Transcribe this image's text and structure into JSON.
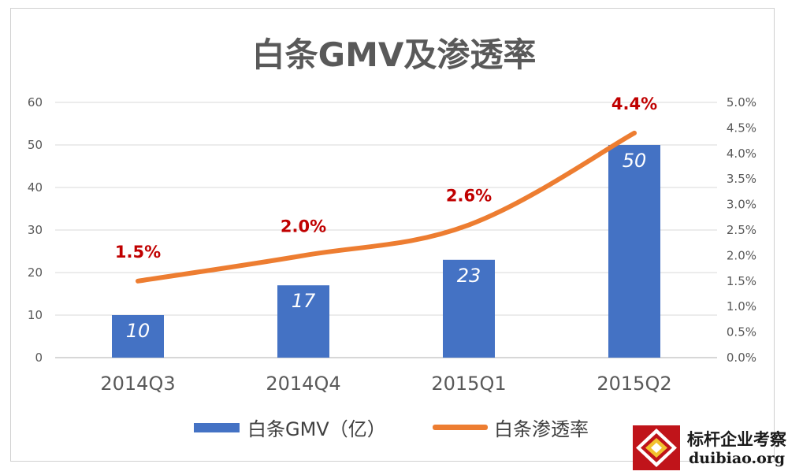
{
  "title": "白条GMV及渗透率",
  "chart_data": {
    "type": "bar",
    "title": "白条GMV及渗透率",
    "categories": [
      "2014Q3",
      "2014Q4",
      "2015Q1",
      "2015Q2"
    ],
    "series": [
      {
        "name": "白条GMV（亿）",
        "type": "bar",
        "axis": "left",
        "values": [
          10,
          17,
          23,
          50
        ],
        "data_labels": [
          "10",
          "17",
          "23",
          "50"
        ],
        "color": "#4472C4"
      },
      {
        "name": "白条渗透率",
        "type": "line",
        "axis": "right",
        "values": [
          1.5,
          2.0,
          2.6,
          4.4
        ],
        "data_labels": [
          "1.5%",
          "2.0%",
          "2.6%",
          "4.4%"
        ],
        "color": "#ED7D31"
      }
    ],
    "y_left": {
      "range": [
        0,
        60
      ],
      "ticks": [
        "0",
        "10",
        "20",
        "30",
        "40",
        "50",
        "60"
      ]
    },
    "y_right": {
      "range": [
        0,
        5.0
      ],
      "ticks": [
        "0.0%",
        "0.5%",
        "1.0%",
        "1.5%",
        "2.0%",
        "2.5%",
        "3.0%",
        "3.5%",
        "4.0%",
        "4.5%",
        "5.0%"
      ]
    },
    "grid": true,
    "legend_position": "bottom",
    "data_label_color": "#C00000"
  },
  "legend": {
    "bar_label": "白条GMV（亿）",
    "line_label": "白条渗透率"
  },
  "watermark": {
    "name_cn": "标杆企业考察",
    "url": "duibiao.org"
  }
}
